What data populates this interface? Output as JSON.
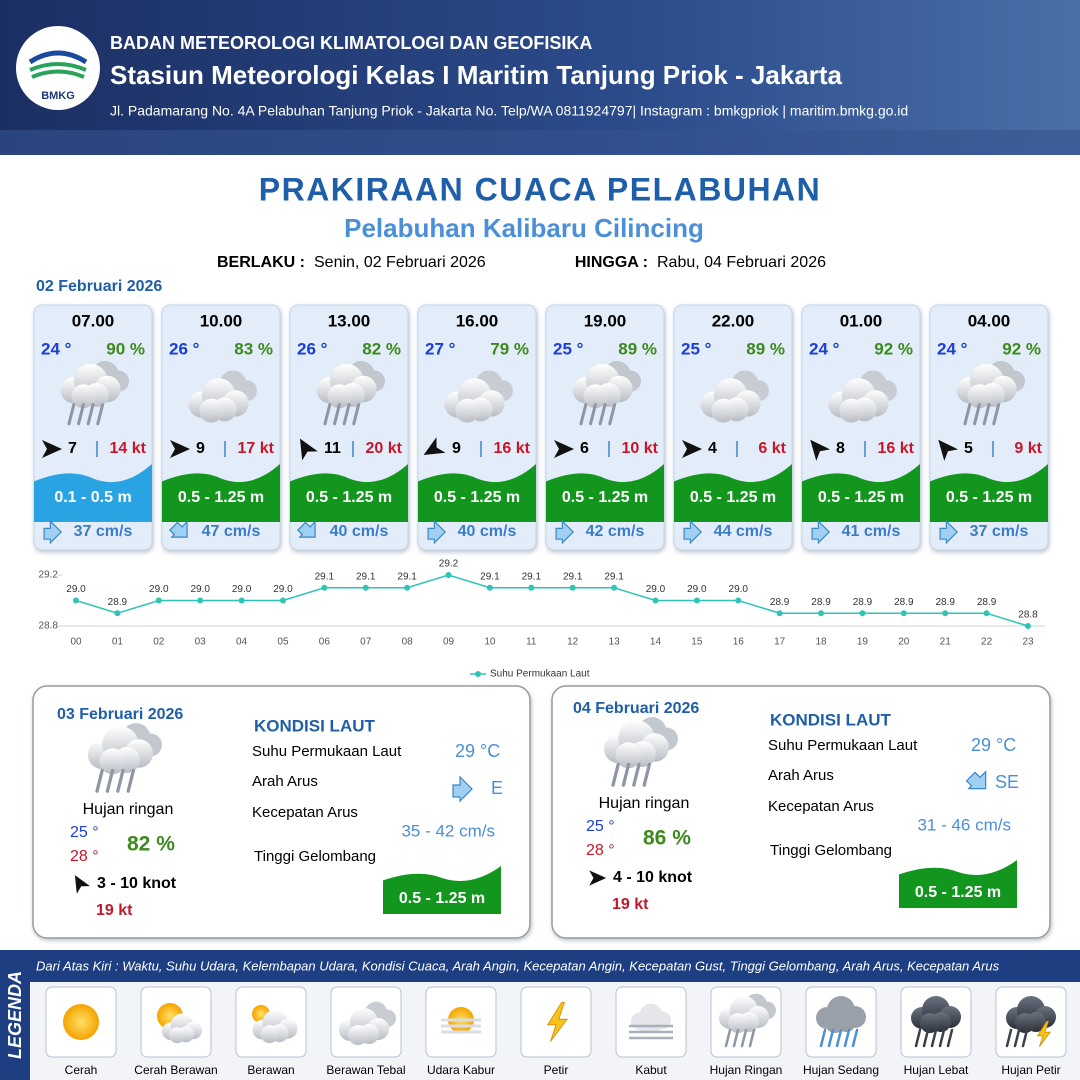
{
  "header": {
    "logo": "BMKG",
    "org": "BADAN METEOROLOGI KLIMATOLOGI DAN GEOFISIKA",
    "station": "Stasiun Meteorologi Kelas I Maritim Tanjung Priok - Jakarta",
    "address": "Jl. Padamarang No. 4A Pelabuhan Tanjung Priok - Jakarta No. Telp/WA 0811924797| Instagram : bmkgpriok | maritim.bmkg.go.id"
  },
  "title": "PRAKIRAAN CUACA PELABUHAN",
  "subtitle": "Pelabuhan Kalibaru Cilincing",
  "validity": {
    "from_label": "BERLAKU :",
    "from": "Senin, 02 Februari 2026",
    "to_label": "HINGGA :",
    "to": "Rabu, 04 Februari 2026"
  },
  "day1": {
    "date": "02 Februari 2026",
    "forecasts": [
      {
        "time": "07.00",
        "temp": "24 °",
        "humidity": "90 %",
        "weather": "Hujan Ringan",
        "wind_dir": 90,
        "wind": 7,
        "gust": "14 kt",
        "wave": "0.1 - 0.5 m",
        "wave_color": "#2aa3e2",
        "current_dir": 90,
        "current": "37 cm/s"
      },
      {
        "time": "10.00",
        "temp": "26 °",
        "humidity": "83 %",
        "weather": "Berawan Tebal",
        "wind_dir": 90,
        "wind": 9,
        "gust": "17 kt",
        "wave": "0.5 - 1.25 m",
        "wave_color": "#12961e",
        "current_dir": 135,
        "current": "47 cm/s"
      },
      {
        "time": "13.00",
        "temp": "26 °",
        "humidity": "82 %",
        "weather": "Hujan Ringan",
        "wind_dir": 330,
        "wind": 11,
        "gust": "20 kt",
        "wave": "0.5 - 1.25 m",
        "wave_color": "#12961e",
        "current_dir": 135,
        "current": "40 cm/s"
      },
      {
        "time": "16.00",
        "temp": "27 °",
        "humidity": "79 %",
        "weather": "Berawan Tebal",
        "wind_dir": 240,
        "wind": 9,
        "gust": "16 kt",
        "wave": "0.5 - 1.25 m",
        "wave_color": "#12961e",
        "current_dir": 90,
        "current": "40 cm/s"
      },
      {
        "time": "19.00",
        "temp": "25 °",
        "humidity": "89 %",
        "weather": "Hujan Ringan",
        "wind_dir": 90,
        "wind": 6,
        "gust": "10 kt",
        "wave": "0.5 - 1.25 m",
        "wave_color": "#12961e",
        "current_dir": 90,
        "current": "42 cm/s"
      },
      {
        "time": "22.00",
        "temp": "25 °",
        "humidity": "89 %",
        "weather": "Berawan Tebal",
        "wind_dir": 90,
        "wind": 4,
        "gust": "6 kt",
        "wave": "0.5 - 1.25 m",
        "wave_color": "#12961e",
        "current_dir": 90,
        "current": "44 cm/s"
      },
      {
        "time": "01.00",
        "temp": "24 °",
        "humidity": "92 %",
        "weather": "Berawan Tebal",
        "wind_dir": 320,
        "wind": 8,
        "gust": "16 kt",
        "wave": "0.5 - 1.25 m",
        "wave_color": "#12961e",
        "current_dir": 90,
        "current": "41 cm/s"
      },
      {
        "time": "04.00",
        "temp": "24 °",
        "humidity": "92 %",
        "weather": "Hujan Ringan",
        "wind_dir": 320,
        "wind": 5,
        "gust": "9 kt",
        "wave": "0.5 - 1.25 m",
        "wave_color": "#12961e",
        "current_dir": 90,
        "current": "37 cm/s"
      }
    ]
  },
  "chart_data": {
    "type": "line",
    "categories": [
      "00",
      "01",
      "02",
      "03",
      "04",
      "05",
      "06",
      "07",
      "08",
      "09",
      "10",
      "11",
      "12",
      "13",
      "14",
      "15",
      "16",
      "17",
      "18",
      "19",
      "20",
      "21",
      "22",
      "23"
    ],
    "series": [
      {
        "name": "Suhu Permukaan Laut",
        "color": "#2ec4b6",
        "values": [
          29.0,
          28.9,
          29.0,
          29.0,
          29.0,
          29.0,
          29.1,
          29.1,
          29.1,
          29.2,
          29.1,
          29.1,
          29.1,
          29.1,
          29.0,
          29.0,
          29.0,
          28.9,
          28.9,
          28.9,
          28.9,
          28.9,
          28.9,
          28.8
        ],
        "value_labels": [
          "29.0",
          "28.9",
          "29.0",
          "29.0",
          "29.0",
          "29.0",
          "29.1",
          "29.1",
          "29.1",
          "29.2",
          "29.1",
          "29.1",
          "29.1",
          "29.1",
          "29.0",
          "29.0",
          "29.0",
          "28.9",
          "28.9",
          "28.9",
          "28.9",
          "28.9",
          "28.9",
          "28.8"
        ]
      }
    ],
    "ylim": [
      28.8,
      29.2
    ],
    "yticks": [
      28.8,
      29.2
    ],
    "grid": false
  },
  "days": [
    {
      "date": "03 Februari 2026",
      "weather": "Hujan Ringan",
      "weather_label": "Hujan ringan",
      "tmin": "25 °",
      "tmax": "28 °",
      "humidity": "82 %",
      "wind_dir": 330,
      "wind": "3  - 10 knot",
      "gust": "19 kt",
      "sea": {
        "title": "KONDISI LAUT",
        "sst_label": "Suhu Permukaan Laut",
        "sst": "29 °C",
        "dir_label": "Arah Arus",
        "current_dir": 90,
        "dir": "E",
        "speed_label": "Kecepatan Arus",
        "speed": "35 - 42 cm/s",
        "wave_label": "Tinggi Gelombang",
        "wave": "0.5 - 1.25 m",
        "wave_color": "#12961e"
      }
    },
    {
      "date": "04 Februari 2026",
      "weather": "Hujan Ringan",
      "weather_label": "Hujan ringan",
      "tmin": "25 °",
      "tmax": "28 °",
      "humidity": "86 %",
      "wind_dir": 90,
      "wind": "4  - 10 knot",
      "gust": "19 kt",
      "sea": {
        "title": "KONDISI LAUT",
        "sst_label": "Suhu Permukaan Laut",
        "sst": "29 °C",
        "dir_label": "Arah Arus",
        "current_dir": 135,
        "dir": "SE",
        "speed_label": "Kecepatan Arus",
        "speed": "31 - 46 cm/s",
        "wave_label": "Tinggi Gelombang",
        "wave": "0.5 - 1.25 m",
        "wave_color": "#12961e"
      }
    }
  ],
  "legend": {
    "title": "LEGENDA",
    "description": "Dari Atas Kiri : Waktu, Suhu Udara, Kelembapan Udara, Kondisi Cuaca, Arah Angin, Kecepatan Angin, Kecepatan Gust, Tinggi Gelombang, Arah Arus, Kecepatan Arus",
    "items": [
      "Cerah",
      "Cerah Berawan",
      "Berawan",
      "Berawan Tebal",
      "Udara Kabur",
      "Petir",
      "Kabut",
      "Hujan Ringan",
      "Hujan Sedang",
      "Hujan Lebat",
      "Hujan Petir"
    ]
  }
}
